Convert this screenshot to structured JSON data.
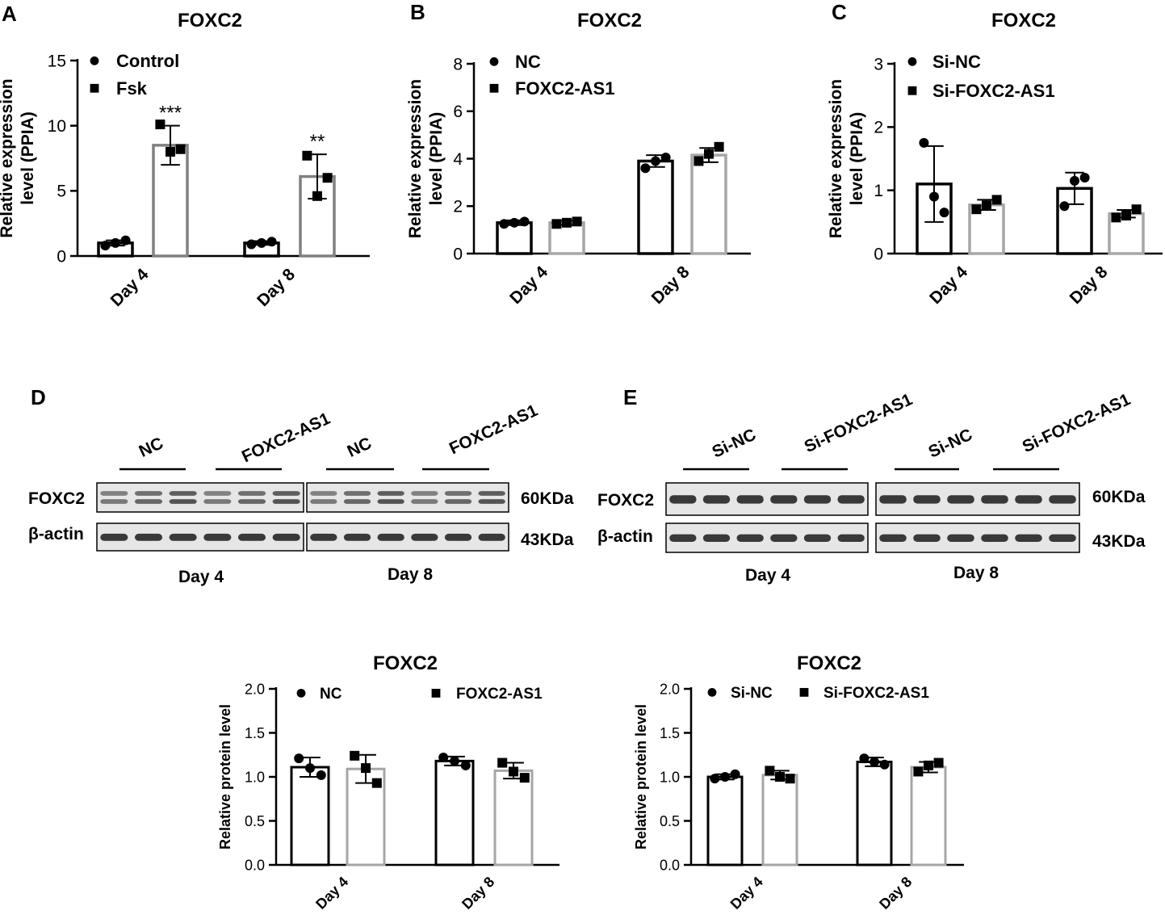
{
  "panels": {
    "A": {
      "letter": "A",
      "title": "FOXC2",
      "ylabel": [
        "Relative expression",
        "level (PPIA)"
      ],
      "yticks": [
        "0",
        "5",
        "10",
        "15"
      ],
      "legend": [
        "Control",
        "Fsk"
      ],
      "categories": [
        "Day 4",
        "Day 8"
      ],
      "stars": [
        "***",
        "**"
      ]
    },
    "B": {
      "letter": "B",
      "title": "FOXC2",
      "ylabel": [
        "Relative expression",
        "level (PPIA)"
      ],
      "yticks": [
        "0",
        "2",
        "4",
        "6",
        "8"
      ],
      "legend": [
        "NC",
        "FOXC2-AS1"
      ],
      "categories": [
        "Day 4",
        "Day 8"
      ]
    },
    "C": {
      "letter": "C",
      "title": "FOXC2",
      "ylabel": [
        "Relative expression",
        "level (PPIA)"
      ],
      "yticks": [
        "0",
        "1",
        "2",
        "3"
      ],
      "legend": [
        "Si-NC",
        "Si-FOXC2-AS1"
      ],
      "categories": [
        "Day 4",
        "Day 8"
      ]
    },
    "D": {
      "letter": "D",
      "groups": [
        "NC",
        "FOXC2-AS1",
        "NC",
        "FOXC2-AS1"
      ],
      "rows": [
        "FOXC2",
        "β-actin"
      ],
      "sizes": [
        "60KDa",
        "43KDa"
      ],
      "days": [
        "Day 4",
        "Day 8"
      ]
    },
    "E": {
      "letter": "E",
      "groups": [
        "Si-NC",
        "Si-FOXC2-AS1",
        "Si-NC",
        "Si-FOXC2-AS1"
      ],
      "rows": [
        "FOXC2",
        "β-actin"
      ],
      "sizes": [
        "60KDa",
        "43KDa"
      ],
      "days": [
        "Day 4",
        "Day 8"
      ]
    },
    "F": {
      "title": "FOXC2",
      "ylabel": [
        "Relative protein level"
      ],
      "yticks": [
        "0.0",
        "0.5",
        "1.0",
        "1.5",
        "2.0"
      ],
      "legend": [
        "NC",
        "FOXC2-AS1"
      ],
      "categories": [
        "Day 4",
        "Day 8"
      ]
    },
    "G": {
      "title": "FOXC2",
      "ylabel": [
        "Relative protein level"
      ],
      "yticks": [
        "0.0",
        "0.5",
        "1.0",
        "1.5",
        "2.0"
      ],
      "legend": [
        "Si-NC",
        "Si-FOXC2-AS1"
      ],
      "categories": [
        "Day 4",
        "Day 8"
      ]
    }
  },
  "colors": {
    "series1": "#000000",
    "series2_A": "#808080",
    "series2": "#a6a6a6"
  },
  "chart_data": [
    {
      "panel": "A",
      "type": "bar",
      "title": "FOXC2",
      "ylabel": "Relative expression level (PPIA)",
      "ylim": [
        0,
        15
      ],
      "categories": [
        "Day 4",
        "Day 8"
      ],
      "series": [
        {
          "name": "Control",
          "values": [
            1.0,
            1.0
          ],
          "errors": [
            0.2,
            0.15
          ],
          "points": [
            [
              0.8,
              1.2,
              1.0
            ],
            [
              0.9,
              1.1,
              1.0
            ]
          ]
        },
        {
          "name": "Fsk",
          "values": [
            8.5,
            6.1
          ],
          "errors": [
            1.5,
            1.7
          ],
          "points": [
            [
              10.1,
              8.2,
              8.0
            ],
            [
              7.7,
              6.0,
              4.6
            ]
          ]
        }
      ]
    },
    {
      "panel": "B",
      "type": "bar",
      "title": "FOXC2",
      "ylabel": "Relative expression level (PPIA)",
      "ylim": [
        0,
        8
      ],
      "categories": [
        "Day 4",
        "Day 8"
      ],
      "series": [
        {
          "name": "NC",
          "values": [
            1.3,
            3.9
          ],
          "errors": [
            0.1,
            0.25
          ],
          "points": [
            [
              1.25,
              1.35,
              1.3
            ],
            [
              3.6,
              4.05,
              3.9
            ]
          ]
        },
        {
          "name": "FOXC2-AS1",
          "values": [
            1.3,
            4.15
          ],
          "errors": [
            0.1,
            0.3
          ],
          "points": [
            [
              1.25,
              1.35,
              1.3
            ],
            [
              3.9,
              4.5,
              4.2
            ]
          ]
        }
      ]
    },
    {
      "panel": "C",
      "type": "bar",
      "title": "FOXC2",
      "ylabel": "Relative expression level (PPIA)",
      "ylim": [
        0,
        3
      ],
      "categories": [
        "Day 4",
        "Day 8"
      ],
      "series": [
        {
          "name": "Si-NC",
          "values": [
            1.1,
            1.03
          ],
          "errors": [
            0.6,
            0.25
          ],
          "points": [
            [
              1.75,
              0.65,
              0.9
            ],
            [
              0.75,
              1.2,
              1.15
            ]
          ]
        },
        {
          "name": "Si-FOXC2-AS1",
          "values": [
            0.77,
            0.63
          ],
          "errors": [
            0.08,
            0.06
          ],
          "points": [
            [
              0.7,
              0.85,
              0.76
            ],
            [
              0.57,
              0.7,
              0.6
            ]
          ]
        }
      ]
    },
    {
      "panel": "F",
      "type": "bar",
      "title": "FOXC2",
      "ylabel": "Relative protein level",
      "ylim": [
        0,
        2.0
      ],
      "categories": [
        "Day 4",
        "Day 8"
      ],
      "series": [
        {
          "name": "NC",
          "values": [
            1.11,
            1.18
          ],
          "errors": [
            0.11,
            0.05
          ],
          "points": [
            [
              1.21,
              1.02,
              1.1
            ],
            [
              1.22,
              1.13,
              1.18
            ]
          ]
        },
        {
          "name": "FOXC2-AS1",
          "values": [
            1.09,
            1.07
          ],
          "errors": [
            0.16,
            0.09
          ],
          "points": [
            [
              1.24,
              0.93,
              1.1
            ],
            [
              1.16,
              0.99,
              1.06
            ]
          ]
        }
      ]
    },
    {
      "panel": "G",
      "type": "bar",
      "title": "FOXC2",
      "ylabel": "Relative protein level",
      "ylim": [
        0,
        2.0
      ],
      "categories": [
        "Day 4",
        "Day 8"
      ],
      "series": [
        {
          "name": "Si-NC",
          "values": [
            1.0,
            1.17
          ],
          "errors": [
            0.03,
            0.05
          ],
          "points": [
            [
              0.98,
              1.03,
              1.0
            ],
            [
              1.21,
              1.14,
              1.17
            ]
          ]
        },
        {
          "name": "Si-FOXC2-AS1",
          "values": [
            1.02,
            1.11
          ],
          "errors": [
            0.05,
            0.06
          ],
          "points": [
            [
              1.07,
              0.98,
              1.0
            ],
            [
              1.06,
              1.16,
              1.13
            ]
          ]
        }
      ]
    }
  ]
}
